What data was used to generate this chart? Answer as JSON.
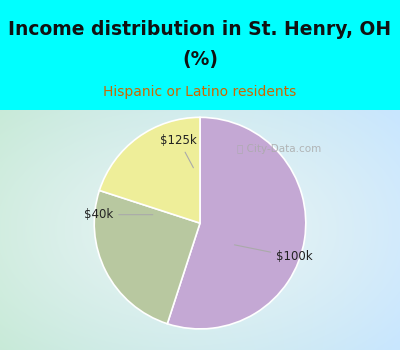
{
  "title_line1": "Income distribution in St. Henry, OH",
  "title_line2": "(%)",
  "subtitle": "Hispanic or Latino residents",
  "title_color": "#111111",
  "subtitle_color": "#CC6600",
  "title_bg_color": "#00FFFF",
  "chart_bg_left": "#C8EAD8",
  "chart_bg_right": "#E8F8FF",
  "slices": [
    {
      "label": "$100k",
      "value": 55,
      "color": "#C4A8D4"
    },
    {
      "label": "$40k",
      "value": 25,
      "color": "#B8C8A0"
    },
    {
      "label": "$125k",
      "value": 20,
      "color": "#EEEE99"
    }
  ],
  "startangle": 90,
  "figsize": [
    4.0,
    3.5
  ],
  "dpi": 100,
  "title_fontsize": 13.5,
  "subtitle_fontsize": 10,
  "label_fontsize": 8.5
}
